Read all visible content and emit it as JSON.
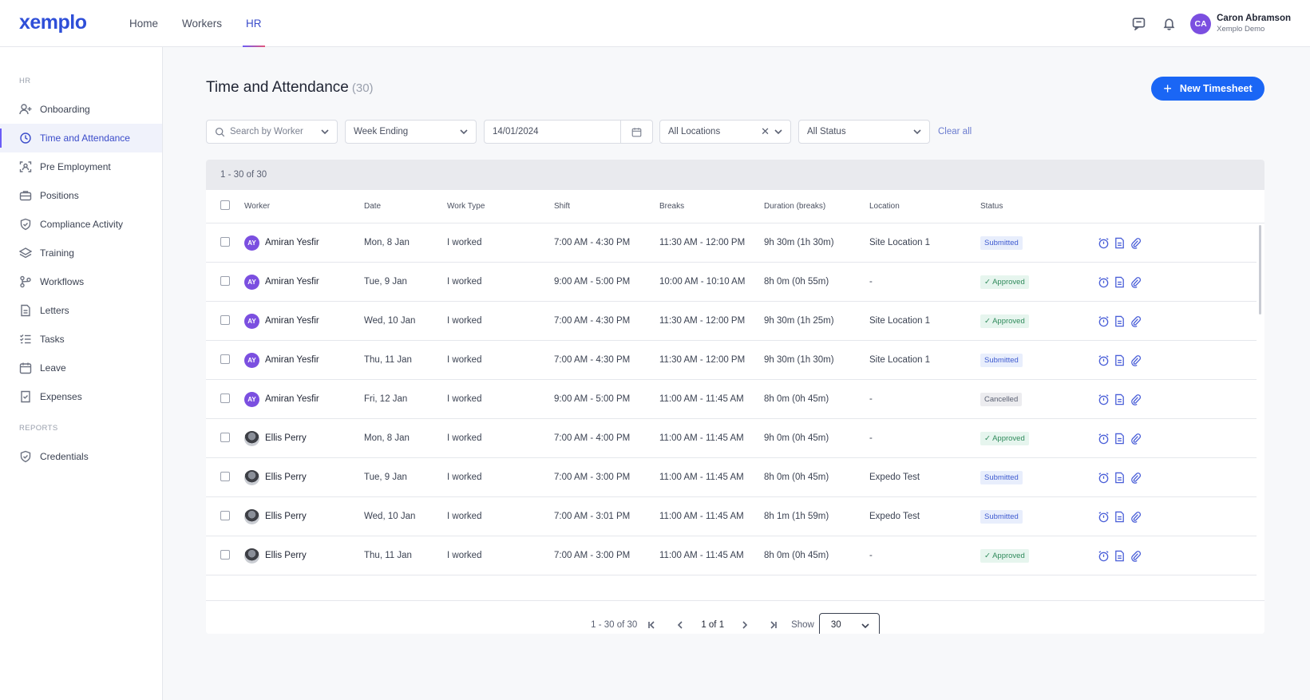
{
  "app": {
    "logo": "xemplo"
  },
  "topnav": {
    "items": [
      "Home",
      "Workers",
      "HR"
    ],
    "active": "HR"
  },
  "user": {
    "initials": "CA",
    "name": "Caron Abramson",
    "org": "Xemplo Demo"
  },
  "sidebar": {
    "hr_section": "HR",
    "items": [
      "Onboarding",
      "Time and Attendance",
      "Pre Employment",
      "Positions",
      "Compliance Activity",
      "Training",
      "Workflows",
      "Letters",
      "Tasks",
      "Leave",
      "Expenses"
    ],
    "reports_section": "REPORTS",
    "report_items": [
      "Credentials"
    ],
    "active": "Time and Attendance"
  },
  "page": {
    "title": "Time and Attendance",
    "count": "(30)",
    "new_button": "New Timesheet"
  },
  "filters": {
    "search_placeholder": "Search by Worker",
    "week": "Week Ending",
    "date": "14/01/2024",
    "location": "All Locations",
    "status": "All Status",
    "clear_all": "Clear all"
  },
  "table": {
    "range": "1 - 30 of 30",
    "headers": {
      "worker": "Worker",
      "date": "Date",
      "work_type": "Work Type",
      "shift": "Shift",
      "breaks": "Breaks",
      "duration": "Duration (breaks)",
      "location": "Location",
      "status": "Status"
    },
    "rows": [
      {
        "initials": "AY",
        "worker": "Amiran Yesfir",
        "date": "Mon, 8 Jan",
        "type": "I worked",
        "shift": "7:00 AM - 4:30 PM",
        "breaks": "11:30 AM - 12:00 PM",
        "duration": "9h 30m (1h 30m)",
        "location": "Site Location 1",
        "status": "Submitted"
      },
      {
        "initials": "AY",
        "worker": "Amiran Yesfir",
        "date": "Tue, 9 Jan",
        "type": "I worked",
        "shift": "9:00 AM - 5:00 PM",
        "breaks": "10:00 AM - 10:10 AM",
        "duration": "8h 0m (0h 55m)",
        "location": "-",
        "status": "✓ Approved"
      },
      {
        "initials": "AY",
        "worker": "Amiran Yesfir",
        "date": "Wed, 10 Jan",
        "type": "I worked",
        "shift": "7:00 AM - 4:30 PM",
        "breaks": "11:30 AM - 12:00 PM",
        "duration": "9h 30m (1h 25m)",
        "location": "Site Location 1",
        "status": "✓ Approved"
      },
      {
        "initials": "AY",
        "worker": "Amiran Yesfir",
        "date": "Thu, 11 Jan",
        "type": "I worked",
        "shift": "7:00 AM - 4:30 PM",
        "breaks": "11:30 AM - 12:00 PM",
        "duration": "9h 30m (1h 30m)",
        "location": "Site Location 1",
        "status": "Submitted"
      },
      {
        "initials": "AY",
        "worker": "Amiran Yesfir",
        "date": "Fri, 12 Jan",
        "type": "I worked",
        "shift": "9:00 AM - 5:00 PM",
        "breaks": "11:00 AM - 11:45 AM",
        "duration": "8h 0m (0h 45m)",
        "location": "-",
        "status": "Cancelled"
      },
      {
        "initials": "",
        "worker": "Ellis Perry",
        "date": "Mon, 8 Jan",
        "type": "I worked",
        "shift": "7:00 AM - 4:00 PM",
        "breaks": "11:00 AM - 11:45 AM",
        "duration": "9h 0m (0h 45m)",
        "location": "-",
        "status": "✓ Approved"
      },
      {
        "initials": "",
        "worker": "Ellis Perry",
        "date": "Tue, 9 Jan",
        "type": "I worked",
        "shift": "7:00 AM - 3:00 PM",
        "breaks": "11:00 AM - 11:45 AM",
        "duration": "8h 0m (0h 45m)",
        "location": "Expedo Test",
        "status": "Submitted"
      },
      {
        "initials": "",
        "worker": "Ellis Perry",
        "date": "Wed, 10 Jan",
        "type": "I worked",
        "shift": "7:00 AM - 3:01 PM",
        "breaks": "11:00 AM - 11:45 AM",
        "duration": "8h 1m (1h 59m)",
        "location": "Expedo Test",
        "status": "Submitted"
      },
      {
        "initials": "",
        "worker": "Ellis Perry",
        "date": "Thu, 11 Jan",
        "type": "I worked",
        "shift": "7:00 AM - 3:00 PM",
        "breaks": "11:00 AM - 11:45 AM",
        "duration": "8h 0m (0h 45m)",
        "location": "-",
        "status": "✓ Approved"
      }
    ]
  },
  "pager": {
    "range": "1 - 30 of 30",
    "page": "1 of 1",
    "show_label": "Show",
    "show_value": "30"
  },
  "icons": {
    "row_actions": [
      "alarm-clock-icon",
      "document-icon",
      "paperclip-icon"
    ]
  },
  "colors": {
    "primary": "#1a66f5",
    "accent": "#3b4cca",
    "avatar": "#7b4fe0",
    "submitted": "#3f5bd0",
    "approved": "#2f8a5b"
  }
}
